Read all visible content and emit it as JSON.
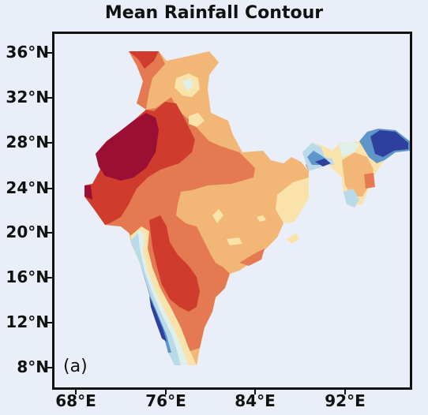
{
  "title": "Mean Rainfall Contour",
  "panel_label": "(a)",
  "y_ticks": [
    "36°N",
    "32°N",
    "28°N",
    "24°N",
    "20°N",
    "16°N",
    "12°N",
    "8°N"
  ],
  "x_ticks": [
    "68°E",
    "76°E",
    "84°E",
    "92°E"
  ],
  "colors": {
    "very_high": "#9b0f34",
    "high": "#cf3b2d",
    "mid_high": "#e57a52",
    "mid": "#f2b777",
    "low": "#f9e3aa",
    "very_low": "#dff0ea",
    "wet_light": "#b9dbe9",
    "wet": "#5e95cb",
    "wet_dark": "#2e3f9e",
    "background": "#e9eef8"
  }
}
